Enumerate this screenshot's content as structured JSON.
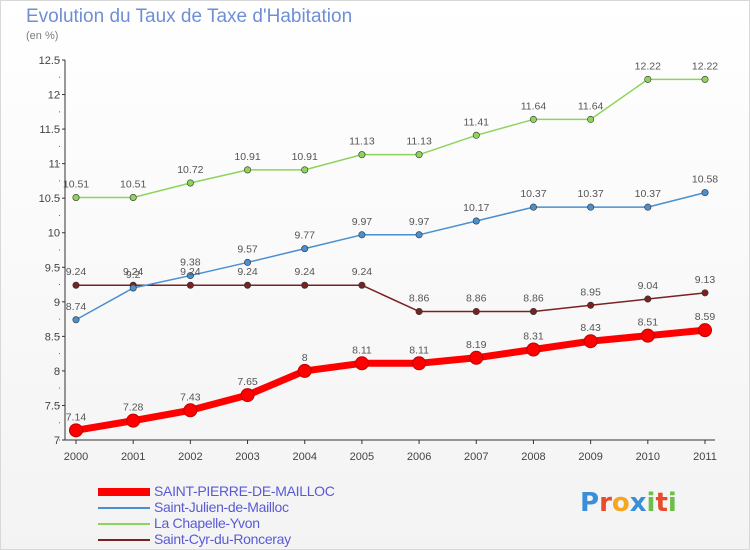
{
  "title": "Evolution du Taux de Taxe d'Habitation",
  "subtitle": "(en %)",
  "logo": {
    "text": "Proxiti",
    "letters": [
      "P",
      "r",
      "o",
      "x",
      "i",
      "t",
      "i"
    ],
    "colors": [
      "#3a8fd8",
      "#e84c2b",
      "#f5a623",
      "#3a8fd8",
      "#6cc04a",
      "#e84c2b",
      "#6cc04a"
    ]
  },
  "chart_data": {
    "type": "line",
    "x": [
      "2000",
      "2001",
      "2002",
      "2003",
      "2004",
      "2005",
      "2006",
      "2007",
      "2008",
      "2009",
      "2010",
      "2011"
    ],
    "ylim": [
      7,
      12.5
    ],
    "yticks": [
      "7",
      "7.5",
      "8",
      "8.5",
      "9",
      "9.5",
      "10",
      "10.5",
      "11",
      "11.5",
      "12",
      "12.5"
    ],
    "grid": false,
    "legend_position": "bottom",
    "series": [
      {
        "name": "SAINT-PIERRE-DE-MAILLOC",
        "color": "#ff0000",
        "values": [
          7.14,
          7.28,
          7.43,
          7.65,
          8,
          8.11,
          8.11,
          8.19,
          8.31,
          8.43,
          8.51,
          8.59
        ],
        "labels": [
          "7.14",
          "7.28",
          "7.43",
          "7.65",
          "8",
          "8.11",
          "8.11",
          "8.19",
          "8.31",
          "8.43",
          "8.51",
          "8.59"
        ]
      },
      {
        "name": "Saint-Julien-de-Mailloc",
        "color": "#4a8fcf",
        "values": [
          8.74,
          9.2,
          9.38,
          9.57,
          9.77,
          9.97,
          9.97,
          10.17,
          10.37,
          10.37,
          10.37,
          10.58
        ],
        "labels": [
          "8.74",
          "9.2",
          "9.38",
          "9.57",
          "9.77",
          "9.97",
          "9.97",
          "10.17",
          "10.37",
          "10.37",
          "10.37",
          "10.58"
        ]
      },
      {
        "name": "La Chapelle-Yvon",
        "color": "#8ed45a",
        "values": [
          10.51,
          10.51,
          10.72,
          10.91,
          10.91,
          11.13,
          11.13,
          11.41,
          11.64,
          11.64,
          12.22,
          12.22
        ],
        "labels": [
          "10.51",
          "10.51",
          "10.72",
          "10.91",
          "10.91",
          "11.13",
          "11.13",
          "11.41",
          "11.64",
          "11.64",
          "12.22",
          "12.22"
        ]
      },
      {
        "name": "Saint-Cyr-du-Ronceray",
        "color": "#7a2222",
        "values": [
          9.24,
          9.24,
          9.24,
          9.24,
          9.24,
          9.24,
          8.86,
          8.86,
          8.86,
          8.95,
          9.04,
          9.13
        ],
        "labels": [
          "9.24",
          "9.24",
          "9.24",
          "9.24",
          "9.24",
          "9.24",
          "8.86",
          "8.86",
          "8.86",
          "8.95",
          "9.04",
          "9.13"
        ]
      }
    ]
  }
}
